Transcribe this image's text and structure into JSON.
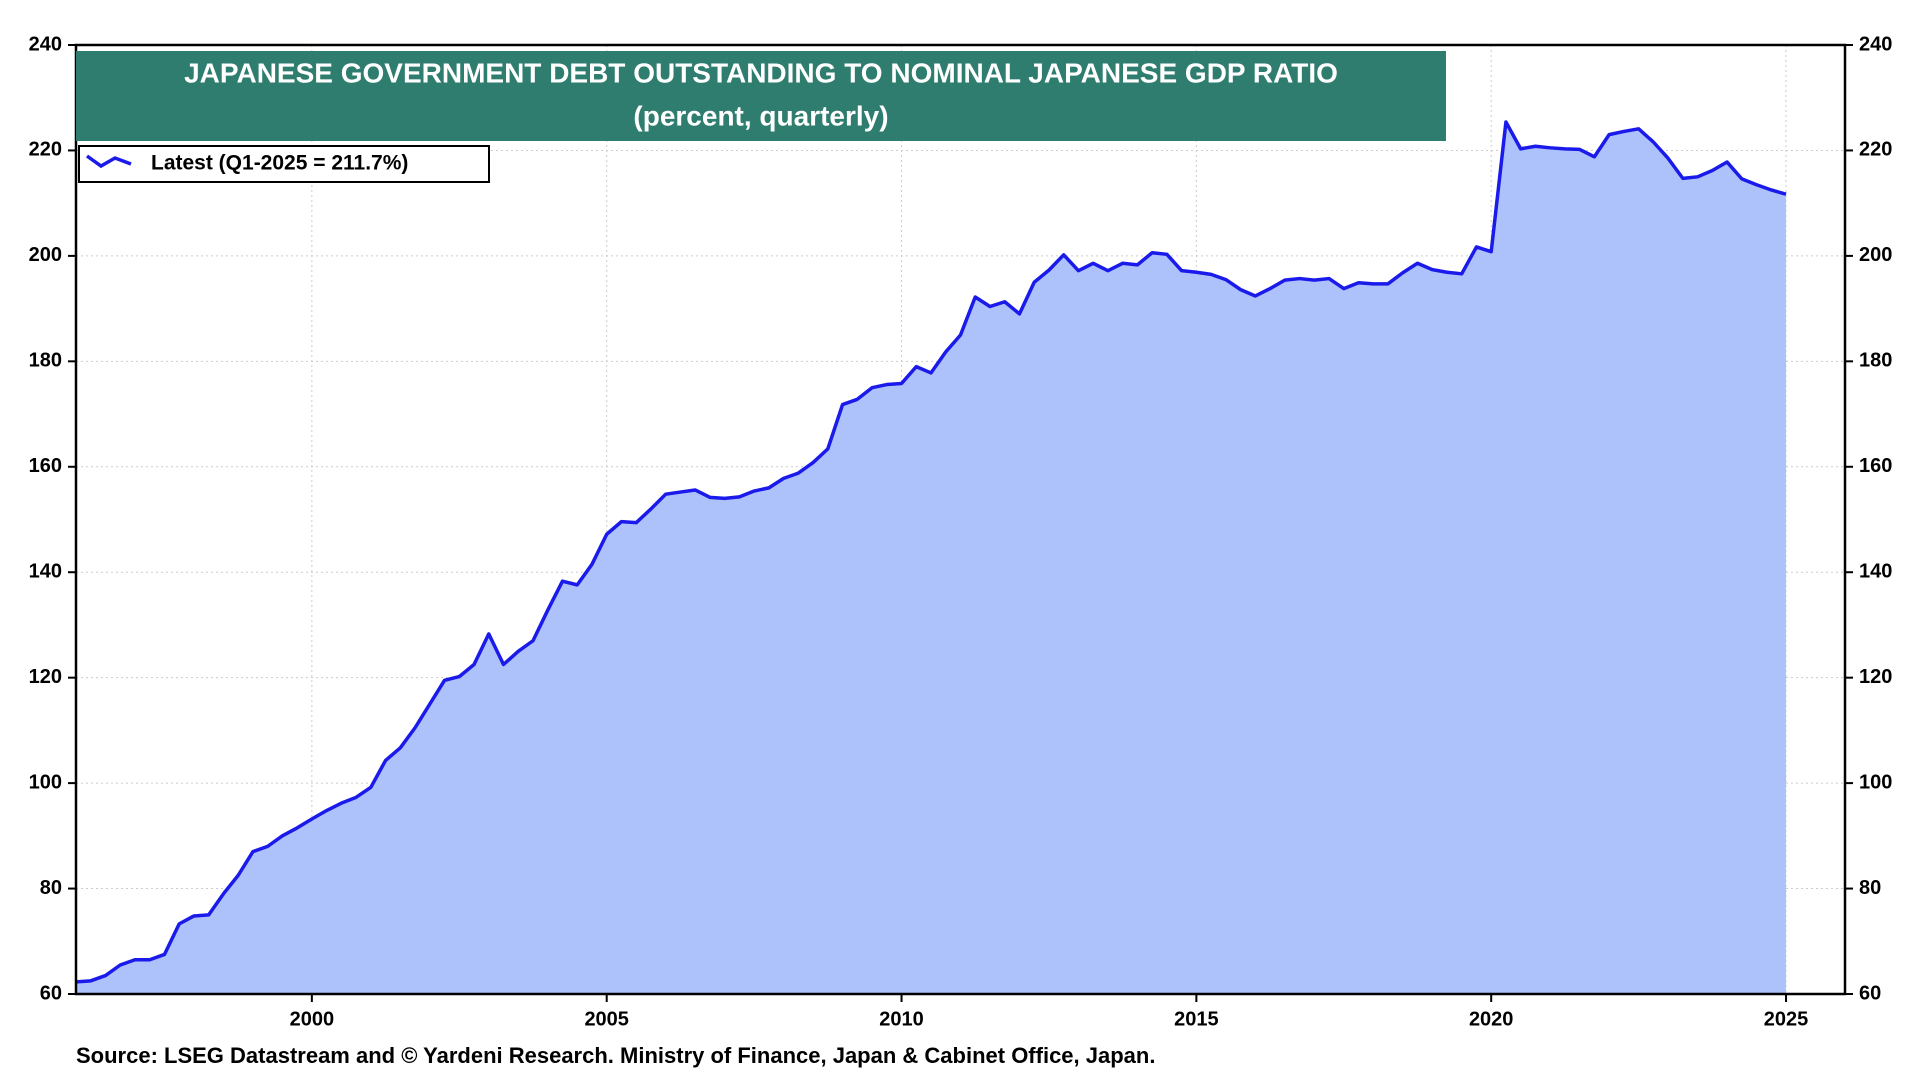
{
  "chart_data": {
    "type": "area",
    "title": "JAPANESE GOVERNMENT DEBT OUTSTANDING TO NOMINAL JAPANESE GDP RATIO",
    "subtitle": "(percent, quarterly)",
    "source": "Source: LSEG Datastream and © Yardeni Research. Ministry of Finance, Japan & Cabinet Office, Japan.",
    "x": [
      1996,
      1996.25,
      1996.5,
      1996.75,
      1997,
      1997.25,
      1997.5,
      1997.75,
      1998,
      1998.25,
      1998.5,
      1998.75,
      1999,
      1999.25,
      1999.5,
      1999.75,
      2000,
      2000.25,
      2000.5,
      2000.75,
      2001,
      2001.25,
      2001.5,
      2001.75,
      2002,
      2002.25,
      2002.5,
      2002.75,
      2003,
      2003.25,
      2003.5,
      2003.75,
      2004,
      2004.25,
      2004.5,
      2004.75,
      2005,
      2005.25,
      2005.5,
      2005.75,
      2006,
      2006.25,
      2006.5,
      2006.75,
      2007,
      2007.25,
      2007.5,
      2007.75,
      2008,
      2008.25,
      2008.5,
      2008.75,
      2009,
      2009.25,
      2009.5,
      2009.75,
      2010,
      2010.25,
      2010.5,
      2010.75,
      2011,
      2011.25,
      2011.5,
      2011.75,
      2012,
      2012.25,
      2012.5,
      2012.75,
      2013,
      2013.25,
      2013.5,
      2013.75,
      2014,
      2014.25,
      2014.5,
      2014.75,
      2015,
      2015.25,
      2015.5,
      2015.75,
      2016,
      2016.25,
      2016.5,
      2016.75,
      2017,
      2017.25,
      2017.5,
      2017.75,
      2018,
      2018.25,
      2018.5,
      2018.75,
      2019,
      2019.25,
      2019.5,
      2019.75,
      2020,
      2020.25,
      2020.5,
      2020.75,
      2021,
      2021.25,
      2021.5,
      2021.75,
      2022,
      2022.25,
      2022.5,
      2022.75,
      2023,
      2023.25,
      2023.5,
      2023.75,
      2024,
      2024.25,
      2024.5,
      2024.75,
      2025
    ],
    "series": [
      {
        "name": "Latest (Q1-2025 = 211.7%)",
        "color": "#1a1aeb",
        "fill": "#adc2fb",
        "values": [
          62.3,
          62.5,
          63.5,
          65.5,
          66.5,
          66.5,
          67.5,
          73.3,
          74.8,
          75,
          79,
          82.5,
          87,
          88,
          90,
          91.5,
          93.2,
          94.8,
          96.2,
          97.3,
          99.2,
          104.3,
          106.7,
          110.5,
          115,
          119.5,
          120.2,
          122.5,
          128.3,
          122.5,
          125,
          127,
          132.8,
          138.3,
          137.6,
          141.5,
          147.2,
          149.6,
          149.4,
          152,
          154.8,
          155.2,
          155.6,
          154.2,
          154,
          154.3,
          155.4,
          156,
          157.8,
          158.8,
          160.8,
          163.4,
          171.8,
          172.8,
          175,
          175.6,
          175.8,
          179,
          177.8,
          181.8,
          185,
          192.2,
          190.4,
          191.3,
          189,
          195,
          197.3,
          200.2,
          197.2,
          198.6,
          197.2,
          198.6,
          198.3,
          200.6,
          200.3,
          197.2,
          196.9,
          196.5,
          195.5,
          193.6,
          192.4,
          193.8,
          195.4,
          195.7,
          195.4,
          195.7,
          193.8,
          194.9,
          194.7,
          194.7,
          196.8,
          198.6,
          197.4,
          196.9,
          196.6,
          201.7,
          200.8,
          225.4,
          220.3,
          220.8,
          220.5,
          220.3,
          220.2,
          218.8,
          223,
          223.6,
          224.1,
          221.6,
          218.5,
          214.7,
          215,
          216.2,
          217.8,
          214.6,
          213.5,
          212.5,
          211.7
        ]
      }
    ],
    "xlim": [
      1996,
      2026
    ],
    "xticks": [
      2000,
      2005,
      2010,
      2015,
      2020,
      2025
    ],
    "ylim": [
      60,
      240
    ],
    "yticks": [
      60,
      80,
      100,
      120,
      140,
      160,
      180,
      200,
      220,
      240
    ],
    "grid": true,
    "legend": "upper left"
  }
}
